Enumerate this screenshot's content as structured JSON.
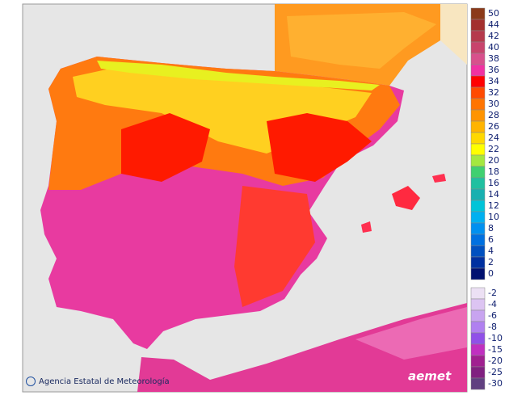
{
  "legend": {
    "positive": [
      {
        "value": 50,
        "color": "#8b3a1a"
      },
      {
        "value": 44,
        "color": "#a3302e"
      },
      {
        "value": 42,
        "color": "#b53a4c"
      },
      {
        "value": 40,
        "color": "#c8446c"
      },
      {
        "value": 38,
        "color": "#d8508c"
      },
      {
        "value": 36,
        "color": "#f032a2"
      },
      {
        "value": 34,
        "color": "#ff0000"
      },
      {
        "value": 32,
        "color": "#ff4a00"
      },
      {
        "value": 30,
        "color": "#ff7400"
      },
      {
        "value": 28,
        "color": "#ff9400"
      },
      {
        "value": 26,
        "color": "#ffb400"
      },
      {
        "value": 24,
        "color": "#ffd800"
      },
      {
        "value": 22,
        "color": "#ffff00"
      },
      {
        "value": 20,
        "color": "#a4e840"
      },
      {
        "value": 18,
        "color": "#40d070"
      },
      {
        "value": 16,
        "color": "#20c0a0"
      },
      {
        "value": 14,
        "color": "#18b0b0"
      },
      {
        "value": 12,
        "color": "#00c4d8"
      },
      {
        "value": 10,
        "color": "#00b0f0"
      },
      {
        "value": 8,
        "color": "#0090f0"
      },
      {
        "value": 6,
        "color": "#0070e0"
      },
      {
        "value": 4,
        "color": "#0050c0"
      },
      {
        "value": 2,
        "color": "#0030a0"
      },
      {
        "value": 0,
        "color": "#001070"
      }
    ],
    "negative": [
      {
        "value": -2,
        "color": "#ece0f4"
      },
      {
        "value": -4,
        "color": "#dcc4f2"
      },
      {
        "value": -6,
        "color": "#c8a4f0"
      },
      {
        "value": -8,
        "color": "#b080f0"
      },
      {
        "value": -10,
        "color": "#9050e8"
      },
      {
        "value": -15,
        "color": "#c030c0"
      },
      {
        "value": -20,
        "color": "#a02090"
      },
      {
        "value": -25,
        "color": "#802080"
      },
      {
        "value": -30,
        "color": "#604080"
      }
    ]
  },
  "footer": {
    "credit": "Agencia Estatal de Meteorología",
    "logo": "aemet"
  }
}
